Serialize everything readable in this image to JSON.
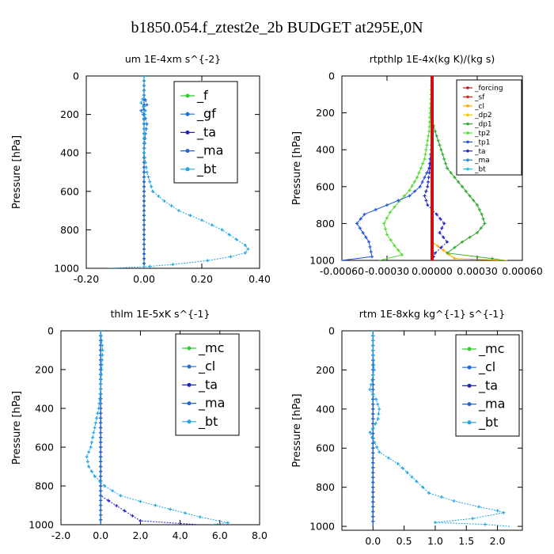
{
  "figure_title": "b1850.054.f_ztest2e_2b  BUDGET at295E,0N",
  "chart_data": [
    {
      "type": "line",
      "title": "um  1E-4xm s^{-2}",
      "ylabel": "Pressure [hPa]",
      "xlim": [
        -0.2,
        0.4
      ],
      "ylim": [
        1000,
        0
      ],
      "xticks": [
        "-0.20",
        "0.00",
        "0.20",
        "0.40"
      ],
      "xtick_values": [
        -0.2,
        0.0,
        0.2,
        0.4
      ],
      "yticks": [
        "0",
        "200",
        "400",
        "600",
        "800",
        "1000"
      ],
      "ytick_values": [
        0,
        200,
        400,
        600,
        800,
        1000
      ],
      "legend_style": "large",
      "series": [
        {
          "name": "_f",
          "color": "#33cc33",
          "x": [
            0,
            0,
            0,
            0,
            0,
            0,
            0,
            0,
            0,
            0,
            0
          ],
          "y": [
            0,
            100,
            200,
            300,
            400,
            500,
            600,
            700,
            800,
            900,
            1000
          ]
        },
        {
          "name": "_gf",
          "color": "#1f6fd6",
          "x": [
            0,
            0,
            0.01,
            -0.01,
            0.005,
            0.01,
            0.005,
            0,
            0,
            0,
            0,
            0
          ],
          "y": [
            0,
            100,
            150,
            180,
            220,
            250,
            300,
            400,
            500,
            600,
            700,
            1000
          ]
        },
        {
          "name": "_ta",
          "color": "#2222cc",
          "x": [
            0,
            0,
            0,
            0,
            0
          ],
          "y": [
            0,
            250,
            500,
            750,
            1000
          ]
        },
        {
          "name": "_ma",
          "color": "#2266cc",
          "x": [
            0,
            0,
            0
          ],
          "y": [
            0,
            500,
            1000
          ]
        },
        {
          "name": "_bt",
          "color": "#22a6e0",
          "x": [
            0,
            0,
            -0.01,
            0.005,
            0,
            0,
            0,
            0.01,
            0.03,
            0.07,
            0.12,
            0.2,
            0.27,
            0.32,
            0.35,
            0.36,
            0.35,
            0.3,
            0.22,
            0.1,
            0.02,
            -0.12
          ],
          "y": [
            0,
            100,
            140,
            180,
            220,
            300,
            400,
            500,
            600,
            650,
            700,
            750,
            800,
            850,
            880,
            900,
            920,
            940,
            960,
            980,
            990,
            1000
          ]
        }
      ]
    },
    {
      "type": "line",
      "title": "rtpthlp  1E-4x(kg K)/(kg s)",
      "ylabel": "Pressure [hPa]",
      "xlim": [
        -0.0006,
        0.0006
      ],
      "ylim": [
        1000,
        0
      ],
      "xticks": [
        "-0.00060",
        "-0.00030",
        "0.00000",
        "0.00030",
        "0.00060"
      ],
      "xtick_values": [
        -0.0006,
        -0.0003,
        0.0,
        0.0003,
        0.0006
      ],
      "yticks": [
        "0",
        "200",
        "400",
        "600",
        "800",
        "1000"
      ],
      "ytick_values": [
        0,
        200,
        400,
        600,
        800,
        1000
      ],
      "legend_style": "small",
      "series": [
        {
          "name": "_forcing",
          "color": "#cc1111",
          "x": [
            0,
            0,
            0,
            0,
            0
          ],
          "y": [
            0,
            250,
            500,
            750,
            1000
          ]
        },
        {
          "name": "_sf",
          "color": "#dd2222",
          "x": [
            0,
            0,
            0,
            0,
            0
          ],
          "y": [
            0,
            250,
            500,
            750,
            1000
          ]
        },
        {
          "name": "_cl",
          "color": "#ffaa00",
          "x": [
            0,
            0,
            0,
            0,
            0.00015,
            0.0005
          ],
          "y": [
            0,
            250,
            500,
            900,
            990,
            1000
          ]
        },
        {
          "name": "_dp2",
          "color": "#eecc00",
          "x": [
            0,
            0,
            0,
            0
          ],
          "y": [
            0,
            400,
            800,
            1000
          ]
        },
        {
          "name": "_dp1",
          "color": "#33aa33",
          "x": [
            0,
            0,
            2e-05,
            6e-05,
            0.0001,
            0.00015,
            0.0002,
            0.00025,
            0.0003,
            0.00033,
            0.00035,
            0.0003,
            0.0002,
            0.0001,
            0.0004,
            0.00048
          ],
          "y": [
            0,
            240,
            300,
            400,
            500,
            550,
            600,
            650,
            700,
            750,
            800,
            850,
            900,
            960,
            990,
            1000
          ]
        },
        {
          "name": "_tp2",
          "color": "#55dd33",
          "x": [
            0,
            -2e-05,
            -5e-05,
            -0.0001,
            -0.00015,
            -0.00022,
            -0.00028,
            -0.00032,
            -0.0003,
            -0.00025,
            -0.0002,
            -0.00035
          ],
          "y": [
            0,
            300,
            450,
            550,
            620,
            680,
            740,
            800,
            860,
            920,
            970,
            1000
          ]
        },
        {
          "name": "_tp1",
          "color": "#2255dd",
          "x": [
            0,
            0,
            -2e-05,
            -8e-05,
            -0.00015,
            -0.0003,
            -0.00045,
            -0.0005,
            -0.00042,
            -0.0004,
            -0.0006
          ],
          "y": [
            0,
            350,
            500,
            600,
            650,
            700,
            750,
            800,
            900,
            980,
            1000
          ]
        },
        {
          "name": "_ta",
          "color": "#2222cc",
          "x": [
            0,
            0,
            -3e-05,
            -5e-05,
            -3e-05,
            3e-05,
            8e-05,
            5e-05,
            0.0001,
            2e-05,
            0
          ],
          "y": [
            0,
            400,
            600,
            650,
            700,
            750,
            800,
            850,
            900,
            960,
            1000
          ]
        },
        {
          "name": "_ma",
          "color": "#2288dd",
          "x": [
            0,
            0,
            0
          ],
          "y": [
            0,
            500,
            1000
          ]
        },
        {
          "name": "_bt",
          "color": "#22c6e8",
          "x": [
            0,
            0,
            0
          ],
          "y": [
            0,
            500,
            1000
          ]
        }
      ]
    },
    {
      "type": "line",
      "title": "thlm  1E-5xK s^{-1}",
      "ylabel": "Pressure [hPa]",
      "xlim": [
        -2.0,
        8.0
      ],
      "ylim": [
        1000,
        0
      ],
      "xticks": [
        "-2.0",
        "0.0",
        "2.0",
        "4.0",
        "6.0",
        "8.0"
      ],
      "xtick_values": [
        -2,
        0,
        2,
        4,
        6,
        8
      ],
      "yticks": [
        "0",
        "200",
        "400",
        "600",
        "800",
        "1000"
      ],
      "ytick_values": [
        0,
        200,
        400,
        600,
        800,
        1000
      ],
      "legend_style": "large",
      "series": [
        {
          "name": "_mc",
          "color": "#33cc33",
          "x": [
            0,
            0,
            0,
            0,
            0,
            0
          ],
          "y": [
            0,
            200,
            400,
            600,
            800,
            1000
          ]
        },
        {
          "name": "_cl",
          "color": "#1f6fd6",
          "x": [
            0,
            0,
            0,
            0,
            0
          ],
          "y": [
            0,
            250,
            500,
            750,
            1000
          ]
        },
        {
          "name": "_ta",
          "color": "#2222cc",
          "x": [
            0,
            0,
            0,
            0,
            2,
            5
          ],
          "y": [
            0,
            250,
            500,
            850,
            980,
            1000
          ]
        },
        {
          "name": "_ma",
          "color": "#2266cc",
          "x": [
            0,
            0,
            0
          ],
          "y": [
            0,
            500,
            1000
          ]
        },
        {
          "name": "_bt",
          "color": "#22a6e0",
          "x": [
            0,
            0.1,
            0.05,
            0,
            -0.1,
            -0.3,
            -0.5,
            -0.7,
            -0.6,
            -0.3,
            0.2,
            1.0,
            2.0,
            3.5,
            5.0,
            6.4,
            5.5
          ],
          "y": [
            0,
            100,
            200,
            300,
            400,
            500,
            600,
            650,
            700,
            750,
            800,
            850,
            880,
            920,
            960,
            990,
            1000
          ]
        }
      ]
    },
    {
      "type": "line",
      "title": "rtm  1E-8xkg kg^{-1} s^{-1}",
      "ylabel": "Pressure [hPa]",
      "xlim": [
        -0.5,
        2.4
      ],
      "ylim": [
        1020,
        0
      ],
      "xticks": [
        "0.0",
        "0.5",
        "1.0",
        "1.5",
        "2.0"
      ],
      "xtick_values": [
        0.0,
        0.5,
        1.0,
        1.5,
        2.0
      ],
      "yticks": [
        "0",
        "200",
        "400",
        "600",
        "800",
        "1000"
      ],
      "ytick_values": [
        0,
        200,
        400,
        600,
        800,
        1000
      ],
      "legend_style": "large",
      "series": [
        {
          "name": "_mc",
          "color": "#33cc33",
          "x": [
            0,
            0,
            0,
            0,
            0,
            0
          ],
          "y": [
            0,
            200,
            400,
            600,
            800,
            1000
          ]
        },
        {
          "name": "_cl",
          "color": "#1f6fd6",
          "x": [
            0,
            0,
            0,
            0,
            0
          ],
          "y": [
            0,
            250,
            500,
            750,
            1000
          ]
        },
        {
          "name": "_ta",
          "color": "#2222cc",
          "x": [
            0,
            0,
            0,
            0,
            0
          ],
          "y": [
            0,
            250,
            500,
            750,
            1000
          ]
        },
        {
          "name": "_ma",
          "color": "#2266cc",
          "x": [
            0,
            0,
            0
          ],
          "y": [
            0,
            500,
            1000
          ]
        },
        {
          "name": "_bt",
          "color": "#22a6e0",
          "x": [
            0,
            0,
            0.02,
            -0.05,
            0.05,
            0.1,
            0.08,
            0,
            -0.05,
            0.1,
            0.4,
            0.7,
            0.9,
            1.3,
            1.7,
            2.0,
            2.1,
            1.6,
            1.0,
            1.8,
            2.2
          ],
          "y": [
            0,
            100,
            200,
            300,
            350,
            400,
            450,
            500,
            520,
            620,
            680,
            770,
            830,
            870,
            900,
            920,
            930,
            960,
            980,
            990,
            1000
          ]
        }
      ]
    }
  ]
}
